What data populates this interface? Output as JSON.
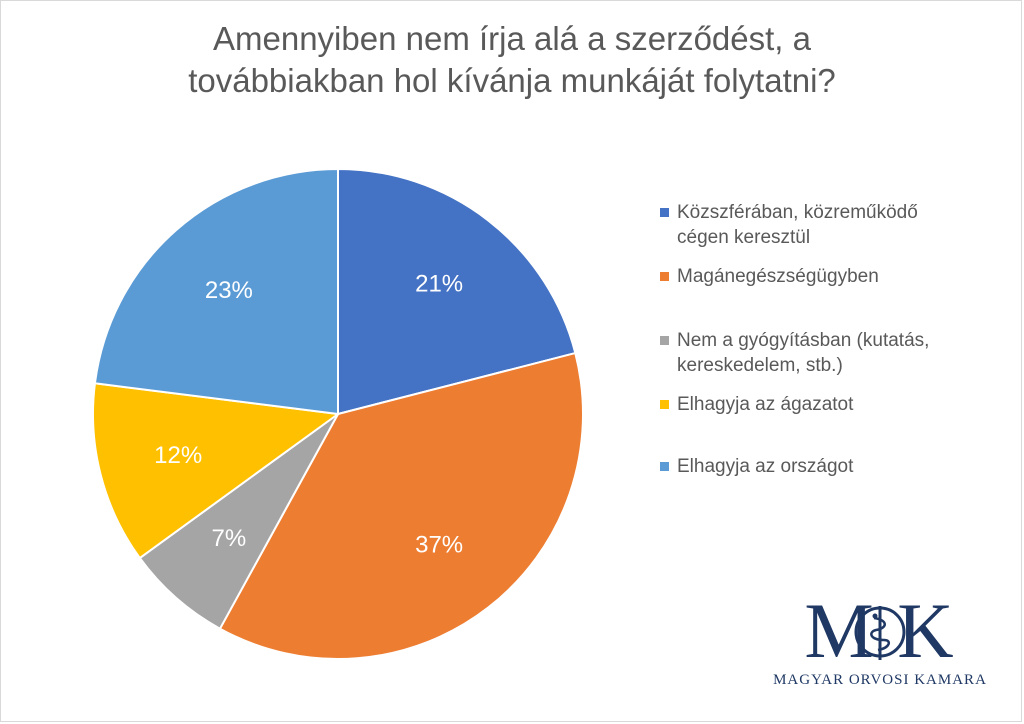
{
  "chart_data": {
    "type": "pie",
    "title_lines": [
      "Amennyiben nem írja alá a szerződést, a",
      "továbbiakban hol kívánja munkáját folytatni?"
    ],
    "slices": [
      {
        "label_lines": [
          "Közszférában, közreműködő",
          "cégen keresztül"
        ],
        "value": 21,
        "display": "21%",
        "color": "#4472c4"
      },
      {
        "label_lines": [
          "Magánegészségügyben"
        ],
        "value": 37,
        "display": "37%",
        "color": "#ed7d31"
      },
      {
        "label_lines": [
          "Nem a gyógyításban (kutatás,",
          "kereskedelem, stb.)"
        ],
        "value": 7,
        "display": "7%",
        "color": "#a5a5a5"
      },
      {
        "label_lines": [
          "Elhagyja az ágazatot"
        ],
        "value": 12,
        "display": "12%",
        "color": "#ffc000"
      },
      {
        "label_lines": [
          "Elhagyja az országot"
        ],
        "value": 23,
        "display": "23%",
        "color": "#5b9bd5"
      }
    ],
    "legend_position": "right",
    "data_label_color": "#ffffff"
  },
  "logo": {
    "letters": "M K",
    "text": "MAGYAR ORVOSI KAMARA",
    "color": "#1f3864",
    "emblem": "staff-of-asclepius-icon"
  }
}
